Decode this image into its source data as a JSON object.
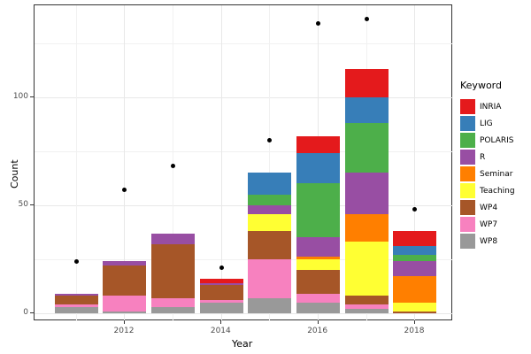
{
  "chart_data": {
    "type": "bar",
    "stacked": true,
    "title": "",
    "xlabel": "Year",
    "ylabel": "Count",
    "legend_title": "Keyword",
    "legend_position": "right",
    "grid": true,
    "categories": [
      2011,
      2012,
      2013,
      2014,
      2015,
      2016,
      2017,
      2018
    ],
    "x_major_ticks": [
      2012,
      2014,
      2016,
      2018
    ],
    "x_tick_labels": [
      "2012",
      "2014",
      "2016",
      "2018"
    ],
    "y_major_ticks": [
      0,
      50,
      100
    ],
    "y_tick_labels": [
      "0",
      "50",
      "100"
    ],
    "y_minor_ticks": [
      25,
      75,
      125
    ],
    "ylim": [
      0,
      142
    ],
    "series": [
      {
        "name": "INRIA",
        "color": "#E41A1C",
        "values": [
          0,
          0,
          0,
          2,
          0,
          8,
          13,
          7
        ]
      },
      {
        "name": "LIG",
        "color": "#377EB8",
        "values": [
          0,
          0,
          0,
          0,
          10,
          14,
          12,
          4
        ]
      },
      {
        "name": "POLARIS",
        "color": "#4DAF4A",
        "values": [
          0,
          0,
          0,
          0,
          5,
          25,
          23,
          3
        ]
      },
      {
        "name": "R",
        "color": "#984EA3",
        "values": [
          1,
          2,
          5,
          1,
          4,
          9,
          19,
          7
        ]
      },
      {
        "name": "Seminar",
        "color": "#FF7F00",
        "values": [
          0,
          0,
          0,
          0,
          0,
          1,
          13,
          12
        ]
      },
      {
        "name": "Teaching",
        "color": "#FFFF33",
        "values": [
          0,
          0,
          0,
          0,
          8,
          5,
          25,
          4
        ]
      },
      {
        "name": "WP4",
        "color": "#A65628",
        "values": [
          4,
          14,
          25,
          7,
          13,
          11,
          4,
          1
        ]
      },
      {
        "name": "WP7",
        "color": "#F781BF",
        "values": [
          1,
          7,
          4,
          1,
          18,
          4,
          2,
          0
        ]
      },
      {
        "name": "WP8",
        "color": "#999999",
        "values": [
          3,
          1,
          3,
          5,
          7,
          5,
          2,
          0
        ]
      }
    ],
    "points": {
      "name": "dots",
      "color": "#000000",
      "values": [
        24,
        57,
        68,
        21,
        80,
        134,
        136,
        48
      ]
    },
    "bar_totals": [
      9,
      24,
      37,
      16,
      65,
      82,
      113,
      38
    ]
  },
  "colors": {
    "panel_border": "#333333",
    "grid_major": "#e8e8e8",
    "grid_minor": "#f1f1f1",
    "axis_text": "#4d4d4d",
    "point": "#000000",
    "background": "#ffffff"
  }
}
